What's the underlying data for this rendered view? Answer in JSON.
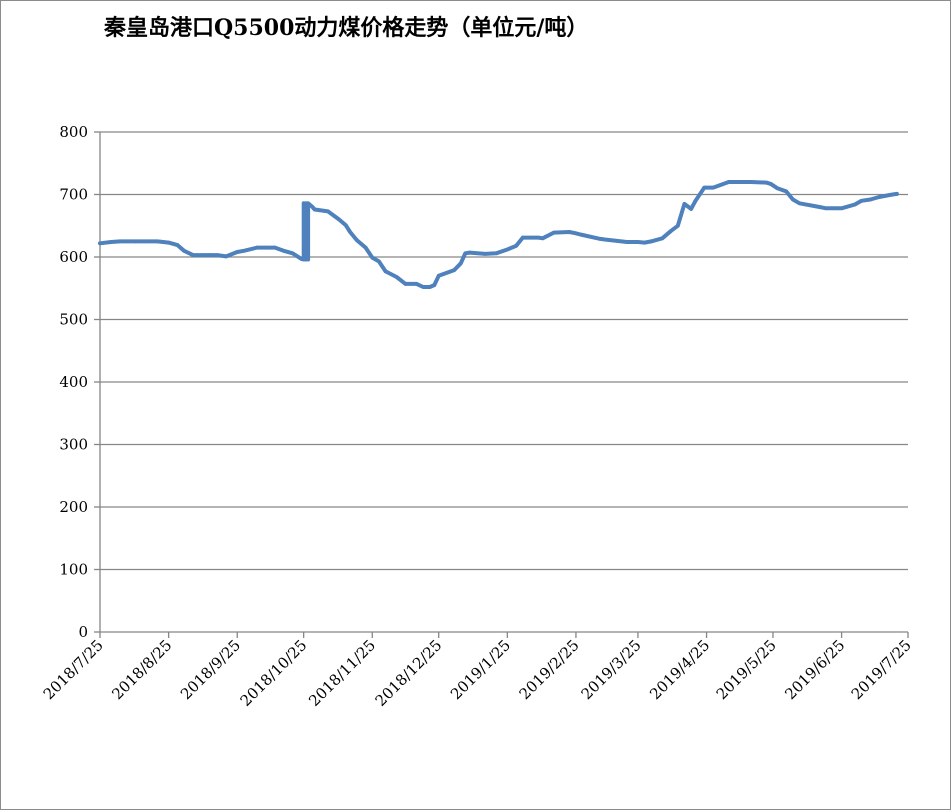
{
  "chart_data": {
    "type": "line",
    "title": "秦皇岛港口Q5500动力煤价格走势（单位元/吨）",
    "xlabel": "",
    "ylabel": "",
    "ylim": [
      0,
      800
    ],
    "yticks": [
      "0",
      "100",
      "200",
      "300",
      "400",
      "500",
      "600",
      "700",
      "800"
    ],
    "x_tick_labels": [
      "2018/7/25",
      "2018/8/25",
      "2018/9/25",
      "2018/10/25",
      "2018/11/25",
      "2018/12/25",
      "2019/1/25",
      "2019/2/25",
      "2019/3/25",
      "2019/4/25",
      "2019/5/25",
      "2019/6/25",
      "2019/7/25"
    ],
    "grid": true,
    "legend": "none",
    "line_color": "#4f81bd",
    "series": [
      {
        "x": [
          "2018-07-25",
          "2018-07-30",
          "2018-08-03",
          "2018-08-10",
          "2018-08-15",
          "2018-08-20",
          "2018-08-25",
          "2018-08-29",
          "2018-09-01",
          "2018-09-05",
          "2018-09-12",
          "2018-09-16",
          "2018-09-20",
          "2018-09-25",
          "2018-09-28",
          "2018-10-04",
          "2018-10-08",
          "2018-10-12",
          "2018-10-16",
          "2018-10-20",
          "2018-10-24",
          "2018-10-25",
          "2018-10-25",
          "2018-10-26",
          "2018-10-26",
          "2018-10-27",
          "2018-10-27",
          "2018-10-29",
          "2018-10-30",
          "2018-11-05",
          "2018-11-10",
          "2018-11-13",
          "2018-11-15",
          "2018-11-18",
          "2018-11-22",
          "2018-11-25",
          "2018-11-28",
          "2018-12-01",
          "2018-12-06",
          "2018-12-10",
          "2018-12-15",
          "2018-12-18",
          "2018-12-21",
          "2018-12-23",
          "2018-12-25",
          "2019-01-01",
          "2019-01-04",
          "2019-01-06",
          "2019-01-08",
          "2019-01-15",
          "2019-01-20",
          "2019-01-25",
          "2019-01-29",
          "2019-02-01",
          "2019-02-08",
          "2019-02-10",
          "2019-02-15",
          "2019-02-22",
          "2019-02-25",
          "2019-02-27",
          "2019-03-08",
          "2019-03-10",
          "2019-03-20",
          "2019-03-25",
          "2019-03-28",
          "2019-03-31",
          "2019-04-05",
          "2019-04-09",
          "2019-04-12",
          "2019-04-15",
          "2019-04-18",
          "2019-04-20",
          "2019-04-24",
          "2019-04-28",
          "2019-05-05",
          "2019-05-15",
          "2019-05-22",
          "2019-05-24",
          "2019-05-27",
          "2019-05-31",
          "2019-06-03",
          "2019-06-06",
          "2019-06-15",
          "2019-06-18",
          "2019-06-23",
          "2019-06-25",
          "2019-07-01",
          "2019-07-04",
          "2019-07-08",
          "2019-07-12",
          "2019-07-18",
          "2019-07-20"
        ],
        "y": [
          622,
          624,
          625,
          625,
          625,
          625,
          623,
          619,
          610,
          603,
          603,
          603,
          601,
          608,
          610,
          615,
          615,
          615,
          610,
          606,
          597,
          596,
          686,
          596,
          686,
          596,
          686,
          680,
          676,
          673,
          660,
          651,
          640,
          627,
          615,
          599,
          593,
          577,
          568,
          557,
          557,
          552,
          552,
          555,
          570,
          579,
          590,
          606,
          607,
          605,
          606,
          612,
          618,
          631,
          631,
          630,
          639,
          640,
          638,
          636,
          629,
          628,
          624,
          624,
          623,
          625,
          630,
          642,
          650,
          685,
          677,
          690,
          711,
          711,
          720,
          720,
          719,
          717,
          710,
          705,
          692,
          686,
          680,
          678,
          678,
          678,
          684,
          690,
          692,
          696,
          700,
          701
        ]
      }
    ]
  }
}
